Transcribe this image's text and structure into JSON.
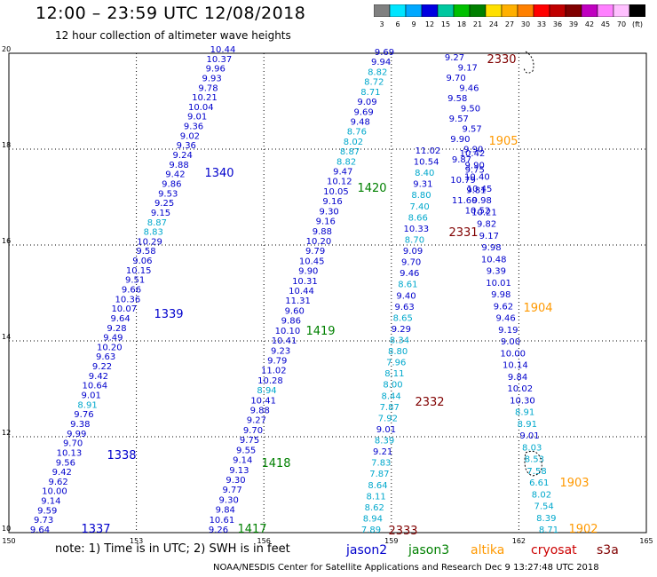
{
  "header": {
    "title": "12:00 – 23:59 UTC 12/08/2018",
    "subtitle": "12 hour collection of altimeter wave heights"
  },
  "legend": {
    "ticks": [
      "3",
      "6",
      "9",
      "12",
      "15",
      "18",
      "21",
      "24",
      "27",
      "30",
      "33",
      "36",
      "39",
      "42",
      "45",
      "70",
      "(ft)"
    ],
    "colors": [
      "#808080",
      "#00e5ff",
      "#00a8ff",
      "#0000e0",
      "#00c8a0",
      "#00c000",
      "#008000",
      "#ffe000",
      "#ffb000",
      "#ff8000",
      "#ff0000",
      "#c00000",
      "#800000",
      "#c000c0",
      "#ff80ff",
      "#ffc0ff",
      "#000000"
    ]
  },
  "axes": {
    "x_labels": [
      "150",
      "153",
      "156",
      "159",
      "162",
      "165"
    ],
    "y_labels": [
      "10",
      "12",
      "14",
      "16",
      "18",
      "20"
    ]
  },
  "passes": [
    {
      "id": "1337",
      "sat": "jason2"
    },
    {
      "id": "1338",
      "sat": "jason2"
    },
    {
      "id": "1339",
      "sat": "jason2"
    },
    {
      "id": "1340",
      "sat": "jason2"
    },
    {
      "id": "1417",
      "sat": "jason3"
    },
    {
      "id": "1418",
      "sat": "jason3"
    },
    {
      "id": "1419",
      "sat": "jason3"
    },
    {
      "id": "1420",
      "sat": "jason3"
    },
    {
      "id": "1902",
      "sat": "altika"
    },
    {
      "id": "1903",
      "sat": "altika"
    },
    {
      "id": "1904",
      "sat": "altika"
    },
    {
      "id": "1905",
      "sat": "altika"
    },
    {
      "id": "2330",
      "sat": "cryosat"
    },
    {
      "id": "2331",
      "sat": "cryosat"
    },
    {
      "id": "2332",
      "sat": "cryosat"
    },
    {
      "id": "2333",
      "sat": "cryosat"
    }
  ],
  "tracks": {
    "t1": [
      "10.44",
      "10.37",
      "9.96",
      "9.93",
      "9.78",
      "10.21",
      "10.04",
      "9.01",
      "9.36",
      "9.02",
      "9.36",
      "9.24",
      "9.88",
      "9.42",
      "9.86",
      "9.53",
      "9.25",
      "9.15",
      "8.87",
      "8.83",
      "10.29",
      "9.58",
      "9.06",
      "10.15",
      "9.51",
      "9.66",
      "10.36",
      "10.07",
      "9.64",
      "9.28",
      "9.49",
      "10.20",
      "9.63",
      "9.22",
      "9.42",
      "10.64",
      "9.01",
      "8.91",
      "9.76",
      "9.38",
      "9.99",
      "9.70",
      "10.13",
      "9.56",
      "9.42",
      "9.62",
      "10.00",
      "9.14",
      "9.59",
      "9.73",
      "9.64"
    ],
    "t2": [
      "9.69",
      "9.94",
      "8.82",
      "8.72",
      "8.71",
      "9.09",
      "9.69",
      "9.48",
      "8.76",
      "8.02",
      "8.87",
      "8.82",
      "9.47",
      "10.12",
      "10.05",
      "9.16",
      "9.30",
      "9.16",
      "9.88",
      "10.20",
      "9.79",
      "10.45",
      "9.90",
      "10.31",
      "10.44",
      "11.31",
      "9.60",
      "9.86",
      "10.10",
      "10.41",
      "9.23",
      "9.79",
      "11.02",
      "10.28",
      "8.94",
      "10.41",
      "9.88",
      "9.27",
      "9.70",
      "9.75",
      "9.55",
      "9.14",
      "9.13",
      "9.30",
      "9.77",
      "9.30",
      "9.84",
      "10.61",
      "9.26"
    ],
    "t3": [
      "11.02",
      "10.54",
      "8.40",
      "9.31",
      "8.80",
      "7.40",
      "8.66",
      "10.33",
      "8.70",
      "9.09",
      "9.70",
      "9.46",
      "8.61",
      "9.40",
      "9.63",
      "8.65",
      "9.29",
      "8.34",
      "8.80",
      "7.96",
      "8.11",
      "8.00",
      "8.44",
      "7.87",
      "7.92",
      "9.01",
      "8.39",
      "9.21",
      "7.83",
      "7.87",
      "8.64",
      "8.11",
      "8.62",
      "8.94",
      "7.89"
    ],
    "t4": [
      "10.42",
      "9.90",
      "10.40",
      "10.45",
      "9.98",
      "10.21",
      "9.82",
      "9.17",
      "9.98",
      "10.48",
      "9.39",
      "10.01",
      "9.98",
      "9.62",
      "9.46",
      "9.19",
      "9.00",
      "10.00",
      "10.14",
      "9.84",
      "10.02",
      "10.30",
      "8.91",
      "8.91",
      "9.01",
      "8.03",
      "8.53",
      "7.58",
      "6.61",
      "8.02",
      "7.54",
      "8.39",
      "8.71"
    ],
    "cluster": [
      "9.27",
      "9.17",
      "9.70",
      "9.46",
      "9.58",
      "9.50",
      "9.57",
      "9.57",
      "9.90",
      "9.90",
      "9.87",
      "9.75",
      "10.79",
      "9.81",
      "11.60",
      "10.52"
    ]
  },
  "note": {
    "text": "note:  1) Time is in UTC;  2) SWH is in feet",
    "sats": [
      "jason2",
      "jason3",
      "altika",
      "cryosat",
      "s3a"
    ],
    "sat_colors": [
      "#0000cc",
      "#008000",
      "#ff9900",
      "#cc0000",
      "#800000"
    ]
  },
  "footer": "NOAA/NESDIS Center for Satellite Applications and Research    Dec  9 13:27:48 UTC 2018"
}
